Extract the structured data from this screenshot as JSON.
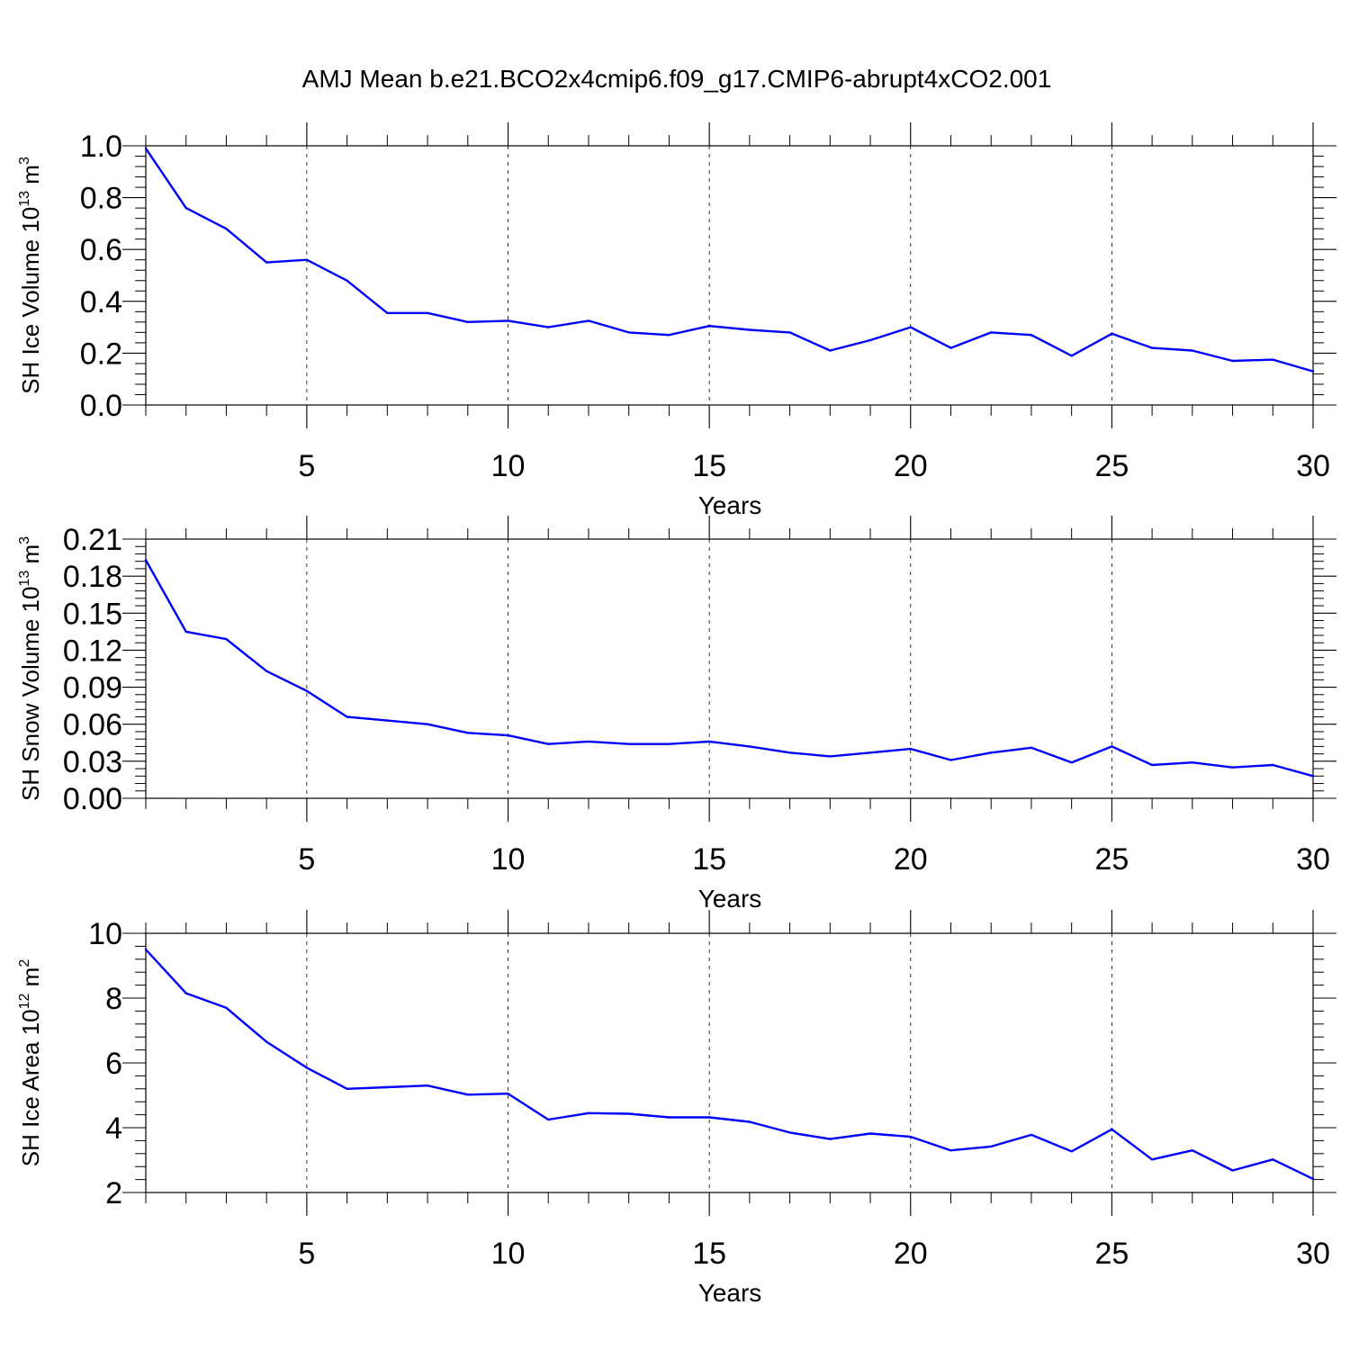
{
  "title": "AMJ Mean b.e21.BCO2x4cmip6.f09_g17.CMIP6-abrupt4xCO2.001",
  "colors": {
    "line": "#0000ff",
    "axis": "#000000",
    "grid": "#000000"
  },
  "chart_data": [
    {
      "type": "line",
      "ylabel": "SH Ice Volume 10",
      "ylabel_sup": "13",
      "ylabel_unit": " m",
      "ylabel_unit_sup": "3",
      "xlabel": "Years",
      "xlim": [
        1,
        30
      ],
      "ylim": [
        0,
        1.0
      ],
      "yticks": [
        "0.0",
        "0.2",
        "0.4",
        "0.6",
        "0.8",
        "1.0"
      ],
      "ytick_values": [
        0,
        0.2,
        0.4,
        0.6,
        0.8,
        1.0
      ],
      "xticks": [
        "5",
        "10",
        "15",
        "20",
        "25",
        "30"
      ],
      "xtick_values": [
        5,
        10,
        15,
        20,
        25,
        30
      ],
      "grid": "vertical dashed at x ticks",
      "x": [
        1,
        2,
        3,
        4,
        5,
        6,
        7,
        8,
        9,
        10,
        11,
        12,
        13,
        14,
        15,
        16,
        17,
        18,
        19,
        20,
        21,
        22,
        23,
        24,
        25,
        26,
        27,
        28,
        29,
        30
      ],
      "values": [
        0.99,
        0.76,
        0.68,
        0.55,
        0.56,
        0.48,
        0.355,
        0.355,
        0.32,
        0.325,
        0.3,
        0.325,
        0.28,
        0.27,
        0.305,
        0.29,
        0.28,
        0.21,
        0.25,
        0.3,
        0.22,
        0.28,
        0.27,
        0.19,
        0.275,
        0.22,
        0.21,
        0.17,
        0.175,
        0.13
      ]
    },
    {
      "type": "line",
      "ylabel": "SH Snow Volume 10",
      "ylabel_sup": "13",
      "ylabel_unit": " m",
      "ylabel_unit_sup": "3",
      "xlabel": "Years",
      "xlim": [
        1,
        30
      ],
      "ylim": [
        0,
        0.21
      ],
      "yticks": [
        "0.00",
        "0.03",
        "0.06",
        "0.09",
        "0.12",
        "0.15",
        "0.18",
        "0.21"
      ],
      "ytick_values": [
        0,
        0.03,
        0.06,
        0.09,
        0.12,
        0.15,
        0.18,
        0.21
      ],
      "xticks": [
        "5",
        "10",
        "15",
        "20",
        "25",
        "30"
      ],
      "xtick_values": [
        5,
        10,
        15,
        20,
        25,
        30
      ],
      "grid": "vertical dashed at x ticks",
      "x": [
        1,
        2,
        3,
        4,
        5,
        6,
        7,
        8,
        9,
        10,
        11,
        12,
        13,
        14,
        15,
        16,
        17,
        18,
        19,
        20,
        21,
        22,
        23,
        24,
        25,
        26,
        27,
        28,
        29,
        30
      ],
      "values": [
        0.193,
        0.135,
        0.129,
        0.103,
        0.087,
        0.066,
        0.063,
        0.06,
        0.053,
        0.051,
        0.044,
        0.046,
        0.044,
        0.044,
        0.046,
        0.042,
        0.037,
        0.034,
        0.037,
        0.04,
        0.031,
        0.037,
        0.041,
        0.029,
        0.042,
        0.027,
        0.029,
        0.025,
        0.027,
        0.018
      ]
    },
    {
      "type": "line",
      "ylabel": "SH Ice Area 10",
      "ylabel_sup": "12",
      "ylabel_unit": " m",
      "ylabel_unit_sup": "2",
      "xlabel": "Years",
      "xlim": [
        1,
        30
      ],
      "ylim": [
        2,
        10
      ],
      "yticks": [
        "2",
        "4",
        "6",
        "8",
        "10"
      ],
      "ytick_values": [
        2,
        4,
        6,
        8,
        10
      ],
      "xticks": [
        "5",
        "10",
        "15",
        "20",
        "25",
        "30"
      ],
      "xtick_values": [
        5,
        10,
        15,
        20,
        25,
        30
      ],
      "grid": "vertical dashed at x ticks",
      "x": [
        1,
        2,
        3,
        4,
        5,
        6,
        7,
        8,
        9,
        10,
        11,
        12,
        13,
        14,
        15,
        16,
        17,
        18,
        19,
        20,
        21,
        22,
        23,
        24,
        25,
        26,
        27,
        28,
        29,
        30
      ],
      "values": [
        9.5,
        8.15,
        7.7,
        6.65,
        5.85,
        5.2,
        5.25,
        5.3,
        5.02,
        5.05,
        4.25,
        4.45,
        4.43,
        4.32,
        4.32,
        4.18,
        3.85,
        3.65,
        3.82,
        3.72,
        3.3,
        3.42,
        3.78,
        3.27,
        3.95,
        3.02,
        3.3,
        2.68,
        3.02,
        2.42
      ]
    }
  ]
}
